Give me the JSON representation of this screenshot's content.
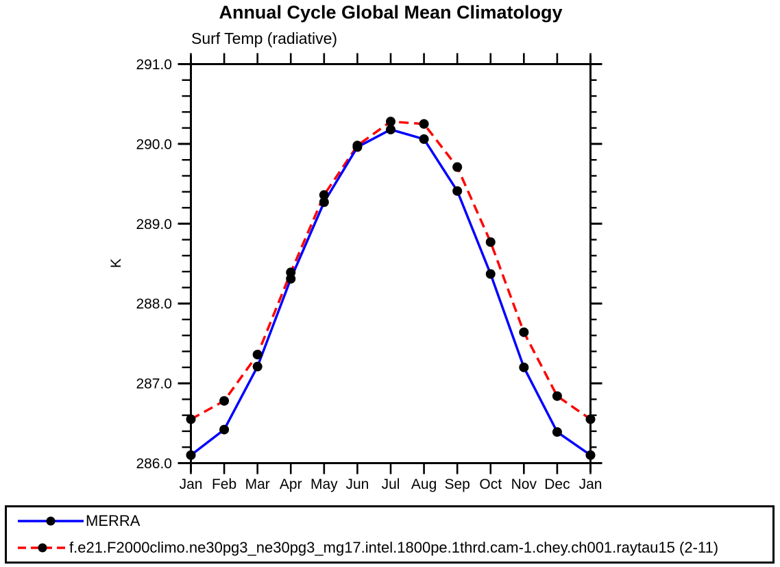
{
  "chart": {
    "title": "Annual Cycle Global Mean Climatology",
    "subtitle": "Surf Temp (radiative)",
    "ylabel": "K"
  },
  "chart_data": {
    "type": "line",
    "title": "Annual Cycle Global Mean Climatology",
    "subtitle": "Surf Temp (radiative)",
    "xlabel": "",
    "ylabel": "K",
    "x_categories": [
      "Jan",
      "Feb",
      "Mar",
      "Apr",
      "May",
      "Jun",
      "Jul",
      "Aug",
      "Sep",
      "Oct",
      "Nov",
      "Dec",
      "Jan"
    ],
    "series": [
      {
        "name": "MERRA",
        "color": "#0000ff",
        "line_style": "solid",
        "marker": "circle",
        "marker_color": "#000000",
        "values": [
          286.1,
          286.42,
          287.21,
          288.31,
          289.27,
          289.96,
          290.18,
          290.06,
          289.41,
          288.37,
          287.2,
          286.39,
          286.1
        ]
      },
      {
        "name": "f.e21.F2000climo.ne30pg3_ne30pg3_mg17.intel.1800pe.1thrd.cam-1.chey.ch001.raytau15 (2-11)",
        "color": "#ff0000",
        "line_style": "dashed",
        "marker": "circle",
        "marker_color": "#000000",
        "values": [
          286.55,
          286.78,
          287.36,
          288.39,
          289.36,
          289.98,
          290.28,
          290.25,
          289.71,
          288.77,
          287.64,
          286.84,
          286.55
        ]
      }
    ],
    "ylim": [
      286.0,
      291.0
    ],
    "ytick_labels": [
      "286.0",
      "287.0",
      "288.0",
      "289.0",
      "290.0",
      "291.0"
    ],
    "ytick_major_step": 1.0,
    "ytick_minor_step": 0.2,
    "grid": false,
    "frame": "box-outward-ticks",
    "legend_position": "bottom-outside-box"
  }
}
